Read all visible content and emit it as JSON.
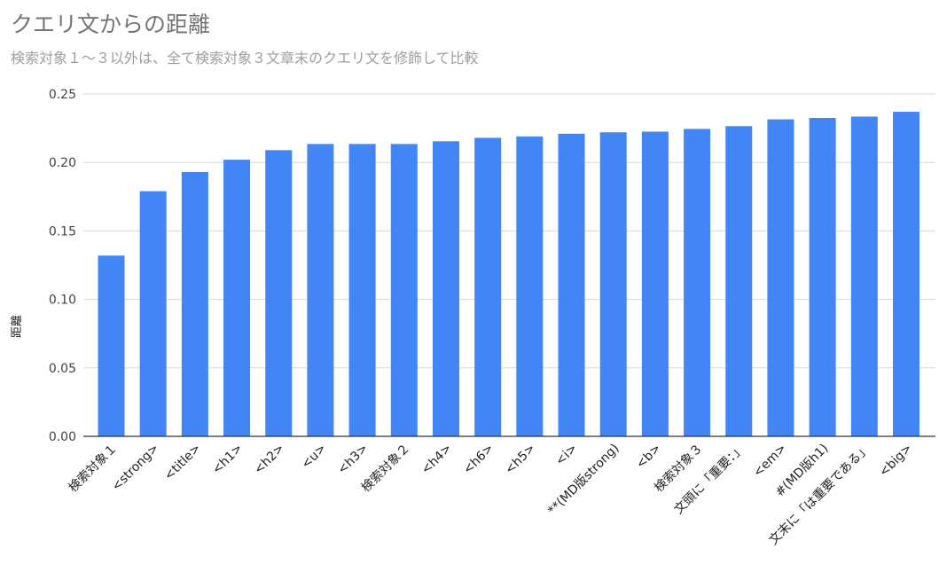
{
  "chart_data": {
    "type": "bar",
    "title": "クエリ文からの距離",
    "subtitle": "検索対象１～３以外は、全て検索対象３文章末のクエリ文を修飾して比較",
    "xlabel": "",
    "ylabel": "距離",
    "ylim": [
      0,
      0.25
    ],
    "yticks": [
      "0.00",
      "0.05",
      "0.10",
      "0.15",
      "0.20",
      "0.25"
    ],
    "grid": true,
    "legend": "none",
    "bar_color": "#4285f4",
    "categories": [
      "検索対象１",
      "<strong>",
      "<title>",
      "<h1>",
      "<h2>",
      "<u>",
      "<h3>",
      "検索対象２",
      "<h4>",
      "<h6>",
      "<h5>",
      "<i>",
      "**(MD版strong)",
      "<b>",
      "検索対象３",
      "文頭に「重要：」",
      "<em>",
      "#(MD版h1)",
      "文末に「は重要である」",
      "<big>"
    ],
    "values": [
      0.132,
      0.179,
      0.193,
      0.202,
      0.209,
      0.2135,
      0.2135,
      0.2135,
      0.2155,
      0.218,
      0.219,
      0.221,
      0.222,
      0.2225,
      0.2245,
      0.2265,
      0.2315,
      0.2325,
      0.2335,
      0.237
    ]
  }
}
